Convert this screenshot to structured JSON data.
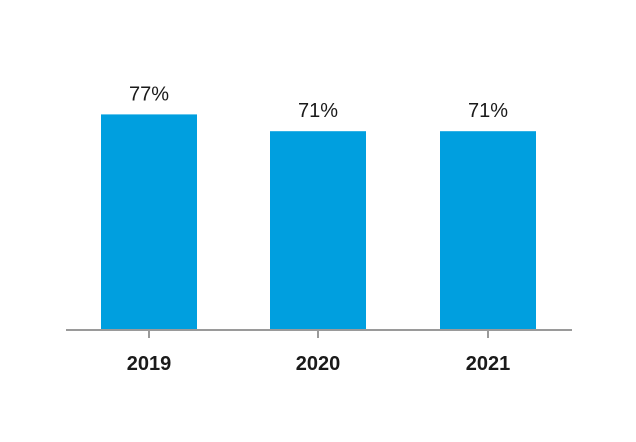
{
  "chart_data": {
    "type": "bar",
    "categories": [
      "2019",
      "2020",
      "2021"
    ],
    "values": [
      77,
      71,
      71
    ],
    "data_labels": [
      "77%",
      "71%",
      "71%"
    ],
    "title": "",
    "xlabel": "",
    "ylabel": "",
    "ylim": [
      0,
      100
    ],
    "grid": false,
    "legend": "none",
    "colors": {
      "bar": "#009fdf",
      "axis": "#9a9a9a",
      "text": "#1a1a1a"
    }
  }
}
